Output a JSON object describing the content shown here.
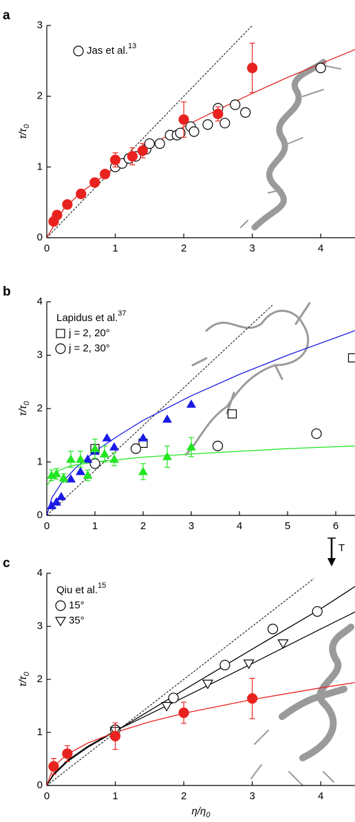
{
  "chart_data": [
    {
      "type": "scatter",
      "panel": "a",
      "y_label": "τ/τ",
      "y_label_sub": "0",
      "xlim": [
        0,
        4.5
      ],
      "ylim": [
        0,
        3
      ],
      "xticks": [
        0,
        1,
        2,
        3,
        4
      ],
      "yticks": [
        0,
        1,
        2,
        3
      ],
      "series": [
        {
          "marker": "line",
          "dash": true,
          "color": "#000000",
          "x": [
            0,
            3
          ],
          "values": [
            0,
            3
          ]
        },
        {
          "marker": "line",
          "color": "#e8231f",
          "x": [
            0,
            0.25,
            0.5,
            1,
            1.5,
            2,
            2.5,
            3,
            3.5,
            4,
            4.5
          ],
          "values": [
            0,
            0.41,
            0.64,
            1,
            1.3,
            1.57,
            1.81,
            2.04,
            2.26,
            2.46,
            2.66
          ]
        },
        {
          "marker": "circle-open",
          "color": "#000000",
          "name": "Jas et al.",
          "name_sup": "13",
          "x": [
            1.0,
            1.1,
            1.2,
            1.3,
            1.45,
            1.5,
            1.65,
            1.8,
            1.9,
            1.95,
            2.1,
            2.15,
            2.35,
            2.5,
            2.6,
            2.75,
            2.9,
            4.0
          ],
          "values": [
            1.0,
            1.05,
            1.12,
            1.15,
            1.25,
            1.33,
            1.33,
            1.45,
            1.45,
            1.48,
            1.57,
            1.5,
            1.6,
            1.83,
            1.62,
            1.88,
            1.77,
            2.4
          ]
        },
        {
          "marker": "circle-filled",
          "color": "#e8231f",
          "x": [
            0.1,
            0.15,
            0.3,
            0.5,
            0.7,
            0.85,
            1.0,
            1.25,
            1.4,
            2.0,
            2.5,
            3.0
          ],
          "values": [
            0.23,
            0.32,
            0.47,
            0.62,
            0.78,
            0.9,
            1.1,
            1.15,
            1.23,
            1.67,
            1.75,
            2.4
          ],
          "errors": [
            null,
            null,
            null,
            null,
            null,
            null,
            0.1,
            0.12,
            0.1,
            0.25,
            0.1,
            0.35
          ]
        }
      ]
    },
    {
      "type": "scatter",
      "panel": "b",
      "y_label": "τ/τ",
      "y_label_sub": "0",
      "xlim": [
        0,
        6.4
      ],
      "ylim": [
        0,
        4
      ],
      "xticks": [
        0,
        1,
        2,
        3,
        4,
        5,
        6
      ],
      "yticks": [
        0,
        1,
        2,
        3,
        4
      ],
      "legend_title": "Lapidus et al.",
      "legend_sup": "37",
      "series": [
        {
          "marker": "line",
          "dash": true,
          "color": "#000000",
          "x": [
            0,
            4.7
          ],
          "values": [
            0,
            3.95
          ]
        },
        {
          "marker": "line",
          "color": "#1a1ae6",
          "x": [
            0,
            0.1,
            0.3,
            0.6,
            1,
            1.5,
            2,
            3,
            4,
            5,
            6.4
          ],
          "values": [
            0,
            0.32,
            0.6,
            0.89,
            1.2,
            1.5,
            1.78,
            2.24,
            2.64,
            3.0,
            3.46
          ]
        },
        {
          "marker": "line",
          "color": "#22e622",
          "x": [
            0,
            0.2,
            0.5,
            1,
            2,
            3,
            4,
            5,
            6.4
          ],
          "values": [
            0.55,
            0.82,
            0.93,
            1.0,
            1.09,
            1.15,
            1.2,
            1.25,
            1.3
          ]
        },
        {
          "marker": "square-open",
          "color": "#000000",
          "name": "j = 2, 20°",
          "x": [
            1.0,
            2.0,
            3.85,
            6.35
          ],
          "values": [
            1.25,
            1.35,
            1.9,
            2.95
          ]
        },
        {
          "marker": "circle-open",
          "color": "#000000",
          "name": "j = 2, 30°",
          "x": [
            1.0,
            1.85,
            3.55,
            5.6
          ],
          "values": [
            0.97,
            1.25,
            1.3,
            1.53
          ]
        },
        {
          "marker": "triangle-filled",
          "color": "#1a1ae6",
          "x": [
            0.1,
            0.2,
            0.3,
            0.5,
            0.7,
            0.85,
            1.0,
            1.25,
            1.4,
            2.0,
            2.5,
            3.0
          ],
          "values": [
            0.18,
            0.25,
            0.35,
            0.68,
            0.82,
            1.05,
            1.2,
            1.45,
            1.28,
            1.45,
            1.8,
            2.08
          ]
        },
        {
          "marker": "triangle-filled",
          "color": "#22e622",
          "x": [
            0.1,
            0.2,
            0.35,
            0.5,
            0.7,
            0.85,
            1.0,
            1.2,
            1.4,
            2.0,
            2.5,
            3.0
          ],
          "values": [
            0.75,
            0.78,
            0.7,
            1.05,
            1.05,
            0.75,
            1.25,
            1.15,
            1.05,
            0.82,
            1.1,
            1.28
          ],
          "errors": [
            0.1,
            0.1,
            0.08,
            0.15,
            0.15,
            0.1,
            0.18,
            0.15,
            0.12,
            0.15,
            0.2,
            0.18
          ]
        }
      ]
    },
    {
      "type": "scatter",
      "panel": "c",
      "y_label": "τ/τ",
      "y_label_sub": "0",
      "x_label": "η/η",
      "x_label_sub": "0",
      "xlim": [
        0,
        4.5
      ],
      "ylim": [
        0,
        4
      ],
      "xticks": [
        0,
        1,
        2,
        3,
        4
      ],
      "yticks": [
        0,
        1,
        2,
        3,
        4
      ],
      "legend_title": "Qiu et al.",
      "legend_sup": "15",
      "annotation": "T",
      "series": [
        {
          "marker": "line",
          "dash": true,
          "color": "#000000",
          "x": [
            0,
            3.9
          ],
          "values": [
            0,
            3.9
          ]
        },
        {
          "marker": "line",
          "color": "#000000",
          "x": [
            0,
            0.1,
            0.3,
            0.6,
            1,
            2,
            3,
            4,
            4.5
          ],
          "values": [
            0,
            0.2,
            0.45,
            0.72,
            1.02,
            1.8,
            2.57,
            3.33,
            3.75
          ]
        },
        {
          "marker": "line",
          "color": "#000000",
          "x": [
            0,
            0.1,
            0.3,
            0.6,
            1,
            2,
            3,
            4,
            4.5
          ],
          "values": [
            0,
            0.22,
            0.47,
            0.74,
            1.03,
            1.66,
            2.3,
            2.95,
            3.27
          ]
        },
        {
          "marker": "line",
          "color": "#e8231f",
          "x": [
            0,
            0.1,
            0.3,
            0.6,
            1,
            1.5,
            2,
            3,
            4,
            4.5
          ],
          "values": [
            0,
            0.36,
            0.59,
            0.8,
            1.0,
            1.2,
            1.36,
            1.62,
            1.84,
            1.94
          ]
        },
        {
          "marker": "circle-open",
          "color": "#000000",
          "name": "15°",
          "x": [
            1.0,
            1.85,
            2.6,
            3.3,
            3.95
          ],
          "values": [
            1.05,
            1.65,
            2.27,
            2.95,
            3.28
          ]
        },
        {
          "marker": "triangle-down-open",
          "color": "#000000",
          "name": "35°",
          "x": [
            1.0,
            1.75,
            2.35,
            2.95,
            3.45
          ],
          "values": [
            1.03,
            1.5,
            1.92,
            2.3,
            2.68
          ]
        },
        {
          "marker": "circle-filled",
          "color": "#e8231f",
          "x": [
            0.1,
            0.3,
            1.0,
            2.0,
            3.0
          ],
          "values": [
            0.36,
            0.6,
            0.93,
            1.37,
            1.64
          ],
          "errors": [
            0.15,
            0.15,
            0.25,
            0.2,
            0.38
          ]
        }
      ]
    }
  ]
}
